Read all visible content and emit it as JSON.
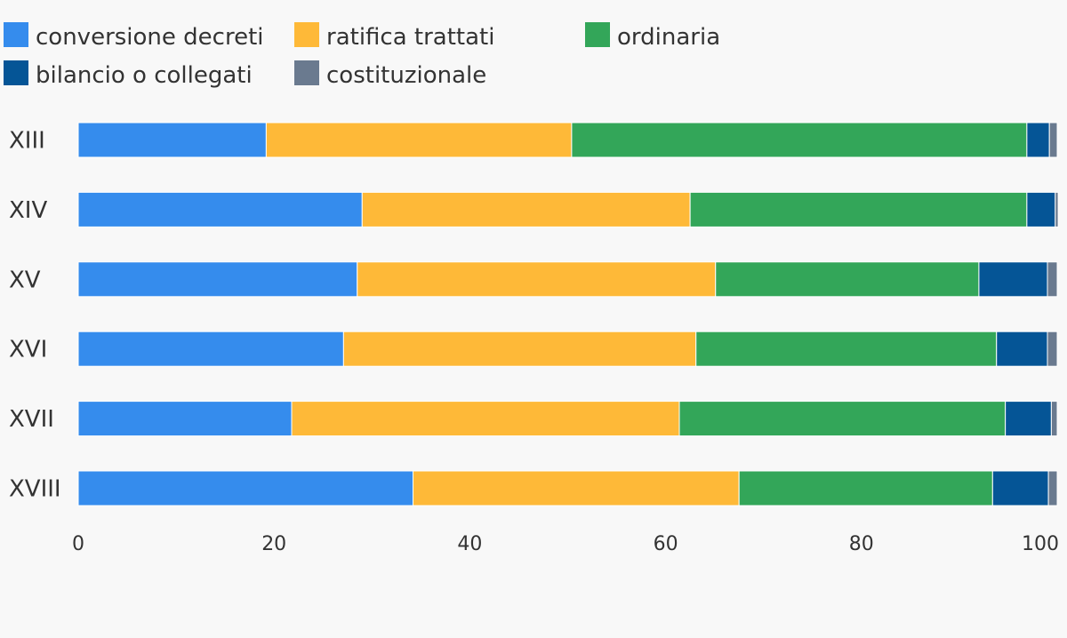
{
  "chart_data": {
    "type": "bar",
    "orientation": "horizontal",
    "stacked": true,
    "title": "",
    "xlabel": "",
    "ylabel": "",
    "xlim": [
      0,
      100
    ],
    "x_ticks": [
      "0",
      "20",
      "40",
      "60",
      "80",
      "100"
    ],
    "grid": false,
    "legend_position": "top-left",
    "categories": [
      "XIII",
      "XIV",
      "XV",
      "XVI",
      "XVII",
      "XVIII"
    ],
    "series": [
      {
        "name": "conversione decreti",
        "color": "#358ced",
        "values": [
          19.2,
          29.0,
          28.5,
          27.1,
          21.8,
          34.2
        ]
      },
      {
        "name": "ratifica trattati",
        "color": "#feb938",
        "values": [
          31.2,
          33.5,
          36.6,
          36.0,
          39.6,
          33.3
        ]
      },
      {
        "name": "ordinaria",
        "color": "#33a659",
        "values": [
          46.5,
          34.4,
          26.9,
          30.7,
          33.3,
          25.9
        ]
      },
      {
        "name": "bilancio o collegati",
        "color": "#055596",
        "values": [
          2.3,
          2.9,
          7.0,
          5.2,
          4.7,
          5.7
        ]
      },
      {
        "name": "costituzionale",
        "color": "#6a7a8f",
        "values": [
          0.8,
          0.3,
          1.0,
          1.0,
          0.6,
          0.9
        ]
      }
    ]
  }
}
